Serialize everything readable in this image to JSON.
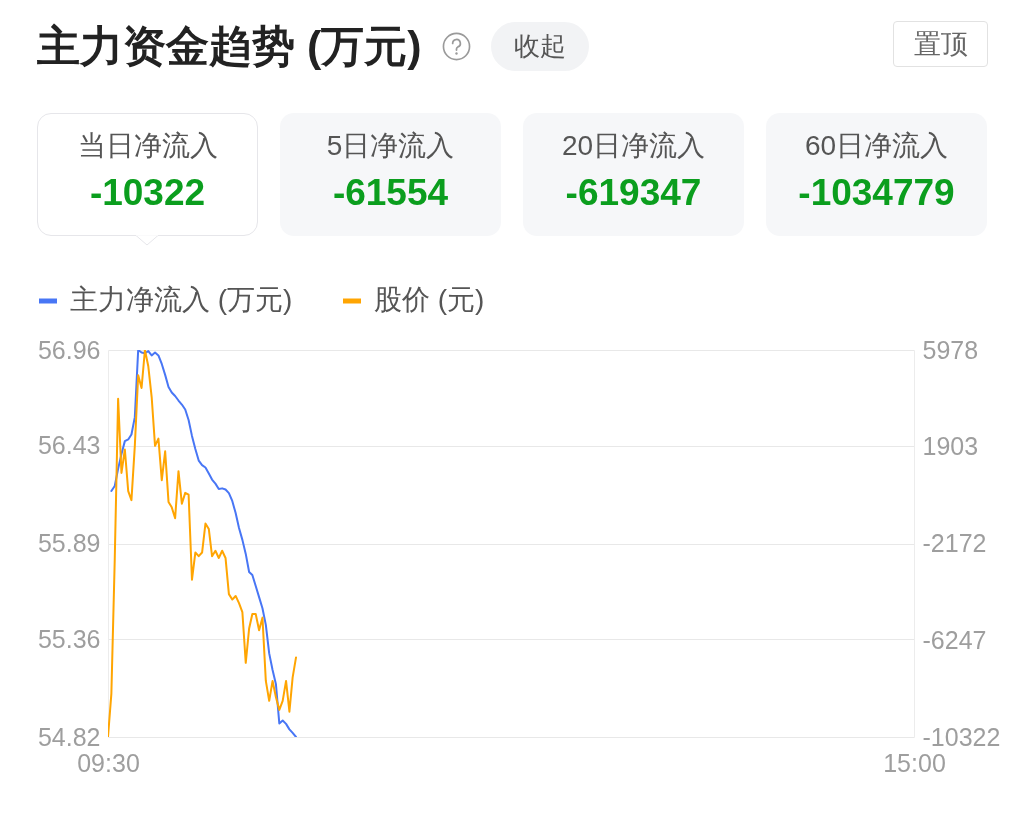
{
  "chart_data": [
    {
      "type": "other",
      "title": "主力资金趋势 (万元)",
      "annotations": [
        "收起",
        "置顶",
        "当日净流入",
        "-10322",
        "5日净流入",
        "-61554",
        "20日净流入",
        "-619347",
        "60日净流入",
        "-1034779"
      ]
    },
    {
      "type": "line",
      "legend": "top left",
      "grid": "y",
      "xlim": [
        9.5,
        15
      ],
      "xticks": [
        {
          "value": 9.5,
          "label": "09:30"
        },
        {
          "value": 15,
          "label": "15:00"
        }
      ],
      "ylim": [
        54.82,
        56.96
      ],
      "yticks": [
        54.82,
        55.36,
        55.89,
        56.43,
        56.96
      ],
      "y2lim": [
        -10322,
        5978
      ],
      "y2ticks": [
        -10322,
        -6247,
        -2172,
        1903,
        5978
      ],
      "series": [
        {
          "name": "主力净流入 (万元)",
          "color": "#4876f5",
          "axis": "y2",
          "x": [
            9.523,
            9.546,
            9.569,
            9.592,
            9.615,
            9.638,
            9.66,
            9.683,
            9.706,
            9.729,
            9.752,
            9.775,
            9.798,
            9.821,
            9.844,
            9.867,
            9.89,
            9.913,
            9.935,
            9.958,
            9.981,
            10.004,
            10.027,
            10.05,
            10.073,
            10.096,
            10.119,
            10.142,
            10.165,
            10.188,
            10.21,
            10.233,
            10.256,
            10.279,
            10.302,
            10.325,
            10.348,
            10.371,
            10.394,
            10.417,
            10.44,
            10.463,
            10.485,
            10.508,
            10.531,
            10.554,
            10.577,
            10.6,
            10.623,
            10.646,
            10.669,
            10.692,
            10.715,
            10.738,
            10.76,
            10.783
          ],
          "values": [
            40,
            250,
            970,
            1600,
            2140,
            2210,
            2420,
            3150,
            5978,
            5870,
            5840,
            5930,
            5750,
            5870,
            5750,
            5390,
            4930,
            4420,
            4190,
            4040,
            3850,
            3680,
            3470,
            3030,
            2360,
            1810,
            1320,
            1130,
            1030,
            780,
            520,
            350,
            120,
            150,
            100,
            -50,
            -380,
            -890,
            -1520,
            -2020,
            -2610,
            -3370,
            -3500,
            -3960,
            -4430,
            -4900,
            -5600,
            -6800,
            -7500,
            -8100,
            -9750,
            -9630,
            -9770,
            -10000,
            -10150,
            -10322
          ]
        },
        {
          "name": "股价 (元)",
          "color": "#ffa502",
          "x": [
            9.5,
            9.523,
            9.546,
            9.569,
            9.592,
            9.615,
            9.638,
            9.66,
            9.683,
            9.706,
            9.729,
            9.752,
            9.775,
            9.798,
            9.821,
            9.844,
            9.867,
            9.89,
            9.913,
            9.935,
            9.958,
            9.981,
            10.004,
            10.027,
            10.05,
            10.073,
            10.096,
            10.119,
            10.142,
            10.165,
            10.188,
            10.21,
            10.233,
            10.256,
            10.279,
            10.302,
            10.325,
            10.348,
            10.371,
            10.394,
            10.417,
            10.44,
            10.463,
            10.485,
            10.508,
            10.531,
            10.554,
            10.577,
            10.6,
            10.623,
            10.646,
            10.669,
            10.692,
            10.715,
            10.738,
            10.76,
            10.783
          ],
          "values": [
            54.82,
            55.06,
            55.8,
            56.69,
            56.28,
            56.41,
            56.18,
            56.13,
            56.43,
            56.82,
            56.75,
            56.96,
            56.87,
            56.7,
            56.43,
            56.47,
            56.24,
            56.4,
            56.12,
            56.09,
            56.03,
            56.29,
            56.11,
            56.17,
            56.16,
            55.69,
            55.84,
            55.82,
            55.84,
            56.0,
            55.97,
            55.82,
            55.85,
            55.81,
            55.85,
            55.81,
            55.61,
            55.58,
            55.6,
            55.56,
            55.51,
            55.23,
            55.42,
            55.5,
            55.5,
            55.41,
            55.48,
            55.13,
            55.02,
            55.13,
            55.04,
            54.97,
            55.02,
            55.13,
            54.96,
            55.15,
            55.26
          ]
        }
      ]
    }
  ]
}
